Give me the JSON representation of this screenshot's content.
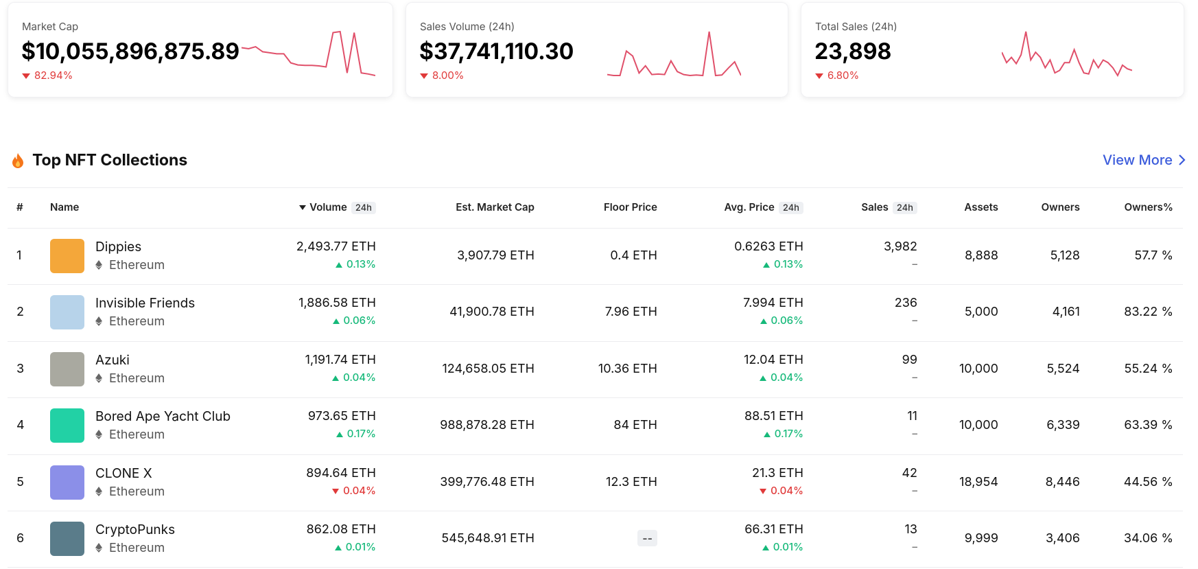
{
  "stats": [
    {
      "label": "Market Cap",
      "value": "$10,055,896,875.89",
      "change": "82.94%",
      "direction": "down",
      "sparkline": [
        70,
        68,
        72,
        62,
        60,
        58,
        58,
        40,
        36,
        35,
        35,
        34,
        32,
        100,
        102,
        20,
        100,
        20,
        18,
        15
      ]
    },
    {
      "label": "Sales Volume (24h)",
      "value": "$37,741,110.30",
      "change": "8.00%",
      "direction": "down",
      "sparkline": [
        12,
        10,
        10,
        60,
        50,
        15,
        30,
        12,
        13,
        12,
        40,
        18,
        12,
        10,
        11,
        10,
        100,
        10,
        11,
        25,
        38,
        10
      ]
    },
    {
      "label": "Total Sales (24h)",
      "value": "23,898",
      "change": "6.80%",
      "direction": "down",
      "sparkline": [
        60,
        40,
        50,
        38,
        55,
        100,
        45,
        60,
        50,
        30,
        45,
        20,
        25,
        40,
        40,
        65,
        40,
        20,
        18,
        45,
        30,
        45,
        40,
        30,
        15,
        35,
        28,
        25
      ]
    }
  ],
  "section": {
    "title": "Top NFT Collections",
    "link": "View More"
  },
  "table": {
    "columns": [
      {
        "label": "#"
      },
      {
        "label": "Name"
      },
      {
        "label": "Volume",
        "badge": "24h",
        "sorted": "desc"
      },
      {
        "label": "Est. Market Cap"
      },
      {
        "label": "Floor Price"
      },
      {
        "label": "Avg. Price",
        "badge": "24h"
      },
      {
        "label": "Sales",
        "badge": "24h"
      },
      {
        "label": "Assets"
      },
      {
        "label": "Owners"
      },
      {
        "label": "Owners%"
      }
    ],
    "rows": [
      {
        "rank": "1",
        "name": "Dippies",
        "chain": "Ethereum",
        "volume": "2,493.77 ETH",
        "volume_change": "0.13%",
        "volume_dir": "up",
        "market_cap": "3,907.79 ETH",
        "floor": "0.4 ETH",
        "avg_price": "0.6263 ETH",
        "avg_change": "0.13%",
        "avg_dir": "up",
        "sales": "3,982",
        "sales_change": "–",
        "assets": "8,888",
        "owners": "5,128",
        "owners_pct": "57.7 %"
      },
      {
        "rank": "2",
        "name": "Invisible Friends",
        "chain": "Ethereum",
        "volume": "1,886.58 ETH",
        "volume_change": "0.06%",
        "volume_dir": "up",
        "market_cap": "41,900.78 ETH",
        "floor": "7.96 ETH",
        "avg_price": "7.994 ETH",
        "avg_change": "0.06%",
        "avg_dir": "up",
        "sales": "236",
        "sales_change": "–",
        "assets": "5,000",
        "owners": "4,161",
        "owners_pct": "83.22 %"
      },
      {
        "rank": "3",
        "name": "Azuki",
        "chain": "Ethereum",
        "volume": "1,191.74 ETH",
        "volume_change": "0.04%",
        "volume_dir": "up",
        "market_cap": "124,658.05 ETH",
        "floor": "10.36 ETH",
        "avg_price": "12.04 ETH",
        "avg_change": "0.04%",
        "avg_dir": "up",
        "sales": "99",
        "sales_change": "–",
        "assets": "10,000",
        "owners": "5,524",
        "owners_pct": "55.24 %"
      },
      {
        "rank": "4",
        "name": "Bored Ape Yacht Club",
        "chain": "Ethereum",
        "volume": "973.65 ETH",
        "volume_change": "0.17%",
        "volume_dir": "up",
        "market_cap": "988,878.28 ETH",
        "floor": "84 ETH",
        "avg_price": "88.51 ETH",
        "avg_change": "0.17%",
        "avg_dir": "up",
        "sales": "11",
        "sales_change": "–",
        "assets": "10,000",
        "owners": "6,339",
        "owners_pct": "63.39 %"
      },
      {
        "rank": "5",
        "name": "CLONE X",
        "chain": "Ethereum",
        "volume": "894.64 ETH",
        "volume_change": "0.04%",
        "volume_dir": "down",
        "market_cap": "399,776.48 ETH",
        "floor": "12.3 ETH",
        "avg_price": "21.3 ETH",
        "avg_change": "0.04%",
        "avg_dir": "down",
        "sales": "42",
        "sales_change": "–",
        "assets": "18,954",
        "owners": "8,446",
        "owners_pct": "44.56 %"
      },
      {
        "rank": "6",
        "name": "CryptoPunks",
        "chain": "Ethereum",
        "volume": "862.08 ETH",
        "volume_change": "0.01%",
        "volume_dir": "up",
        "market_cap": "545,648.91 ETH",
        "floor": "--",
        "avg_price": "66.31 ETH",
        "avg_change": "0.01%",
        "avg_dir": "up",
        "sales": "13",
        "sales_change": "–",
        "assets": "9,999",
        "owners": "3,406",
        "owners_pct": "34.06 %"
      }
    ]
  }
}
